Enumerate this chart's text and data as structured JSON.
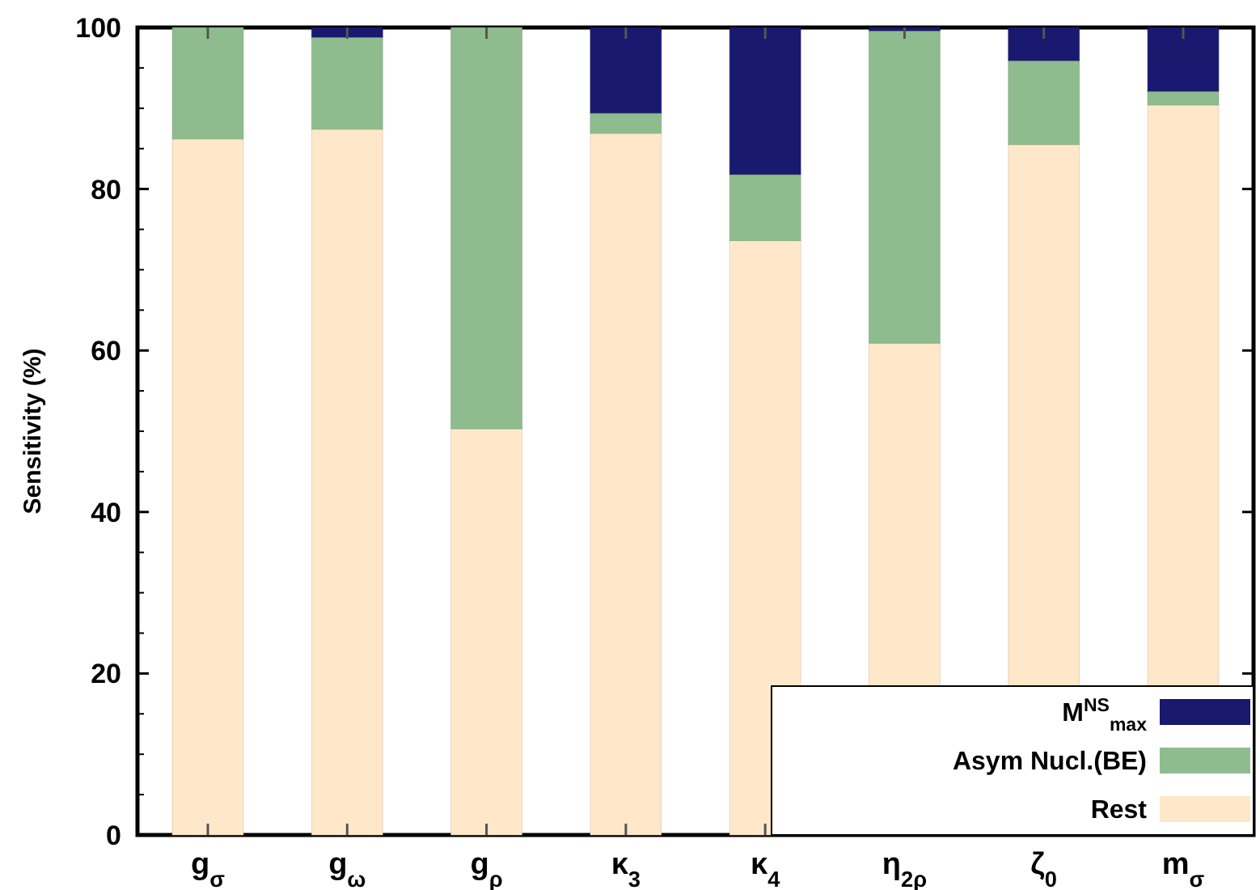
{
  "chart_data": {
    "type": "bar",
    "stacked": true,
    "ylabel": "Sensitivity (%)",
    "categories": [
      "g$_{σ}$",
      "g$_{ω}$",
      "g$_{ρ}$",
      "κ$_{3}$",
      "κ$_{4}$",
      "η$_{2ρ}$",
      "ζ$_{0}$",
      "m$_{σ}$"
    ],
    "series": [
      {
        "name": "Rest",
        "color": "#fee8c9",
        "values": [
          86.2,
          87.4,
          50.3,
          86.9,
          73.6,
          60.9,
          85.5,
          90.4
        ]
      },
      {
        "name": "Asym Nucl.(BE)",
        "color": "#8fbc8f",
        "values": [
          13.8,
          11.4,
          49.7,
          2.5,
          8.2,
          38.7,
          10.4,
          1.7
        ]
      },
      {
        "name": "M$^{NS}$$_{max}$",
        "color": "#191970",
        "values": [
          0,
          1.2,
          0,
          10.6,
          18.2,
          0.4,
          4.1,
          7.9
        ]
      }
    ],
    "ylim": [
      0,
      100
    ],
    "yticks": [
      0,
      20,
      40,
      60,
      80,
      100
    ],
    "grid": false,
    "legend": "bottom right"
  }
}
